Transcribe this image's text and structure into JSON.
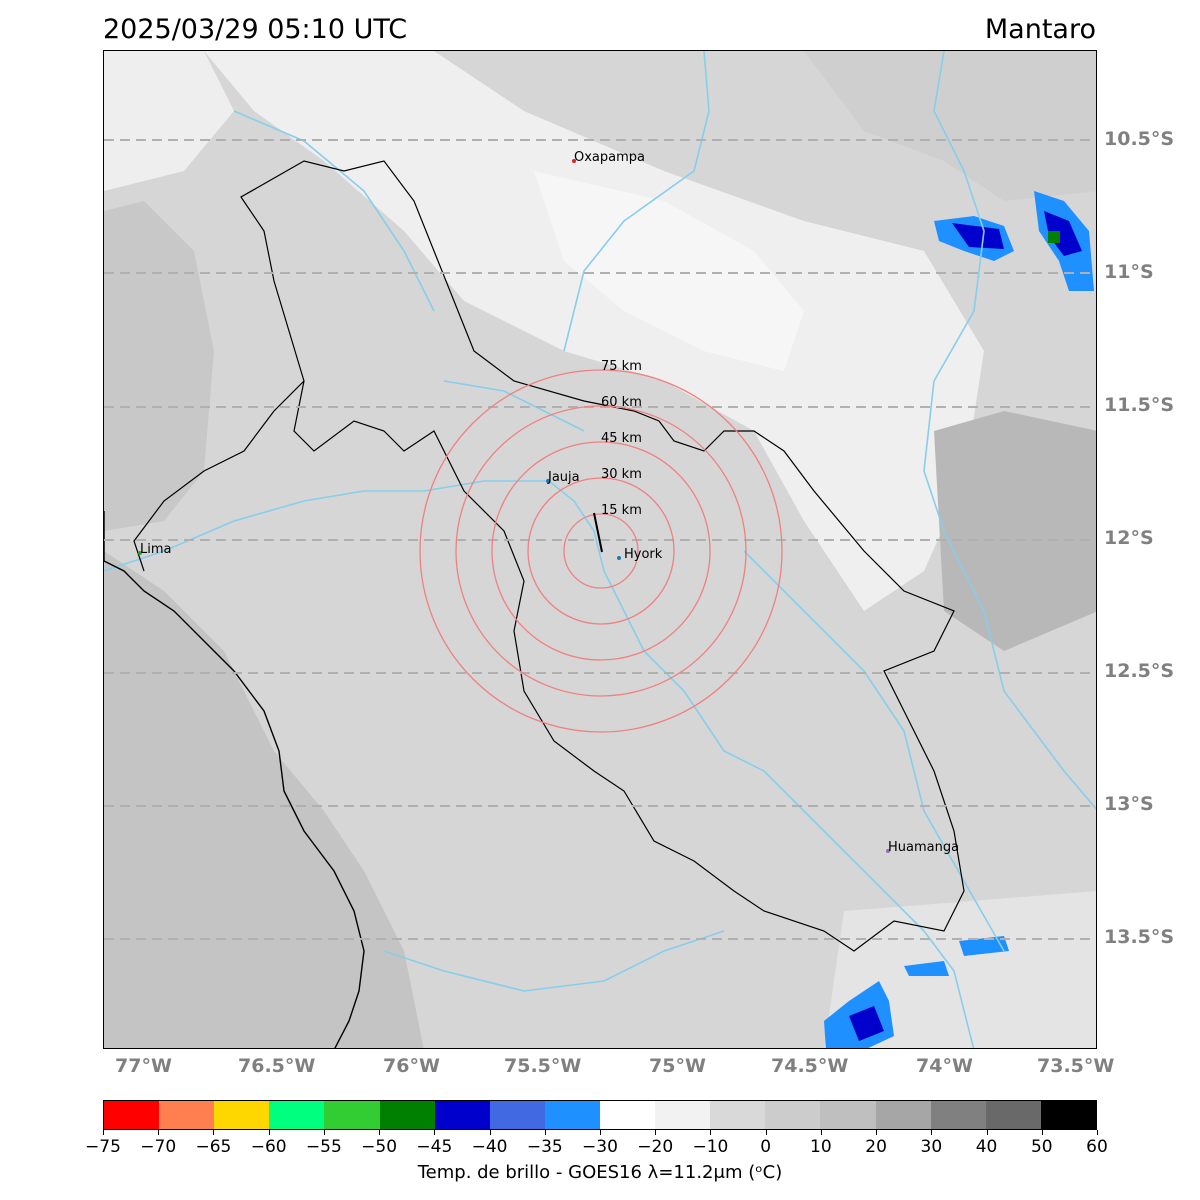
{
  "header": {
    "datetime": "2025/03/29 05:10 UTC",
    "basin_name": "Mantaro"
  },
  "map": {
    "lat_ticks": [
      "10.5°S",
      "11°S",
      "11.5°S",
      "12°S",
      "12.5°S",
      "13°S",
      "13.5°S"
    ],
    "lon_ticks": [
      "77°W",
      "76.5°W",
      "76°W",
      "75.5°W",
      "75°W",
      "74.5°W",
      "74°W",
      "73.5°W"
    ],
    "cities": [
      {
        "name": "Oxapampa",
        "color": "#d62728"
      },
      {
        "name": "Jauja",
        "color": "#1f77b4"
      },
      {
        "name": "Hyork",
        "color": "#1f77b4"
      },
      {
        "name": "Lima",
        "color": "#2ca02c"
      },
      {
        "name": "Huamanga",
        "color": "#9467bd"
      }
    ],
    "range_rings": [
      "15 km",
      "30 km",
      "45 km",
      "60 km",
      "75 km"
    ],
    "colors": {
      "river": "#87ceeb",
      "boundary": "#000000",
      "ring": "#f08080",
      "gridline": "#b0b0b0"
    }
  },
  "colorbar": {
    "label": "Temp. de brillo - GOES16 λ=11.2μm (ᵒC)",
    "tick_labels": [
      "−75",
      "−70",
      "−65",
      "−60",
      "−55",
      "−50",
      "−45",
      "−40",
      "−35",
      "−30",
      "−20",
      "−10",
      "0",
      "10",
      "20",
      "30",
      "40",
      "50",
      "60"
    ],
    "colors": [
      "#ff0000",
      "#ff7f50",
      "#ffd700",
      "#00ff7f",
      "#32cd32",
      "#008000",
      "#0000cd",
      "#4169e1",
      "#1e90ff",
      "#ffffff",
      "#f2f2f2",
      "#d9d9d9",
      "#cccccc",
      "#bfbfbf",
      "#a6a6a6",
      "#808080",
      "#696969",
      "#000000"
    ]
  }
}
